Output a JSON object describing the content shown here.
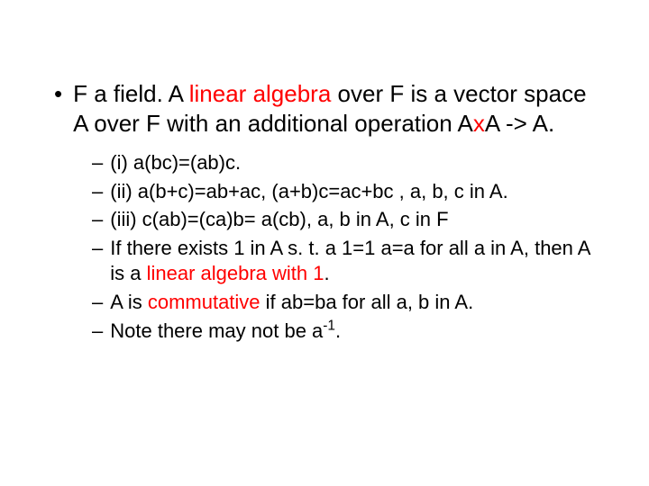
{
  "slide": {
    "main_bullet": {
      "parts": [
        {
          "t": "F a field. A ",
          "hl": false
        },
        {
          "t": "linear algebra",
          "hl": true
        },
        {
          "t": " over F is a vector space  A  over F with an additional operation A",
          "hl": false
        },
        {
          "t": "x",
          "hl": true
        },
        {
          "t": "A -> A.",
          "hl": false
        }
      ]
    },
    "sub_items": [
      {
        "parts": [
          {
            "t": "(i) a(bc)=(ab)c.",
            "hl": false
          }
        ]
      },
      {
        "parts": [
          {
            "t": "(ii) a(b+c)=ab+ac, (a+b)c=ac+bc , a, b, c in A.",
            "hl": false
          }
        ]
      },
      {
        "parts": [
          {
            "t": "(iii) c(ab)=(ca)b= a(cb),  a, b in A, c in F",
            "hl": false
          }
        ]
      },
      {
        "parts": [
          {
            "t": "If there exists 1 in A s. t. a 1=1 a=a for all a in A, then A is a ",
            "hl": false
          },
          {
            "t": "linear algebra with 1",
            "hl": true
          },
          {
            "t": ". ",
            "hl": false
          }
        ]
      },
      {
        "parts": [
          {
            "t": "A is ",
            "hl": false
          },
          {
            "t": "commutative",
            "hl": true
          },
          {
            "t": " if ab=ba for all a, b in A.",
            "hl": false
          }
        ]
      },
      {
        "parts": [
          {
            "t": "Note there may not be a",
            "hl": false
          },
          {
            "t": "-1",
            "hl": false,
            "sup": true
          },
          {
            "t": ". ",
            "hl": false
          }
        ]
      }
    ]
  },
  "style": {
    "background_color": "#ffffff",
    "text_color": "#000000",
    "highlight_color": "#ff0000",
    "main_fontsize": 26,
    "sub_fontsize": 22,
    "font_family": "Arial"
  }
}
